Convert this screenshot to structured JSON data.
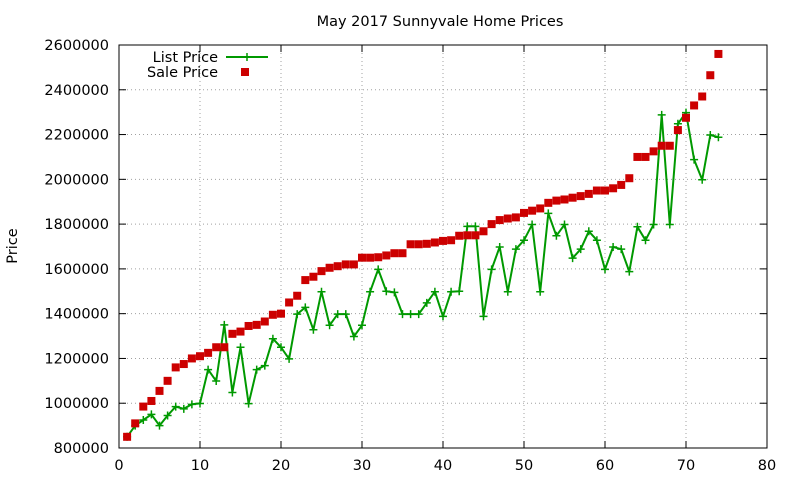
{
  "chart_data": {
    "type": "line",
    "title": "May 2017 Sunnyvale Home Prices",
    "xlabel": "",
    "ylabel": "Price",
    "xlim": [
      0,
      80
    ],
    "ylim": [
      800000,
      2600000
    ],
    "xticks": [
      0,
      10,
      20,
      30,
      40,
      50,
      60,
      70,
      80
    ],
    "yticks": [
      800000,
      1000000,
      1200000,
      1400000,
      1600000,
      1800000,
      2000000,
      2200000,
      2400000,
      2600000
    ],
    "grid": true,
    "legend_position": "top-left",
    "series": [
      {
        "name": "List Price",
        "style": "line-with-plus-markers",
        "color": "#009900",
        "points": [
          [
            1,
            850000
          ],
          [
            2,
            900000
          ],
          [
            3,
            925000
          ],
          [
            4,
            950000
          ],
          [
            5,
            900000
          ],
          [
            6,
            945000
          ],
          [
            7,
            985000
          ],
          [
            8,
            975000
          ],
          [
            9,
            995000
          ],
          [
            10,
            999000
          ],
          [
            11,
            1150000
          ],
          [
            12,
            1099000
          ],
          [
            13,
            1350000
          ],
          [
            14,
            1048000
          ],
          [
            15,
            1250000
          ],
          [
            16,
            998000
          ],
          [
            17,
            1150000
          ],
          [
            18,
            1168000
          ],
          [
            19,
            1288000
          ],
          [
            20,
            1250000
          ],
          [
            21,
            1198000
          ],
          [
            22,
            1398000
          ],
          [
            23,
            1428000
          ],
          [
            24,
            1328000
          ],
          [
            25,
            1498000
          ],
          [
            26,
            1348000
          ],
          [
            27,
            1398000
          ],
          [
            28,
            1398000
          ],
          [
            29,
            1298000
          ],
          [
            30,
            1348000
          ],
          [
            31,
            1498000
          ],
          [
            32,
            1598000
          ],
          [
            33,
            1500000
          ],
          [
            34,
            1495000
          ],
          [
            35,
            1398000
          ],
          [
            36,
            1398000
          ],
          [
            37,
            1398000
          ],
          [
            38,
            1448000
          ],
          [
            39,
            1498000
          ],
          [
            40,
            1388000
          ],
          [
            41,
            1498000
          ],
          [
            42,
            1500000
          ],
          [
            43,
            1790000
          ],
          [
            44,
            1790000
          ],
          [
            45,
            1388000
          ],
          [
            46,
            1598000
          ],
          [
            47,
            1698000
          ],
          [
            48,
            1498000
          ],
          [
            49,
            1688000
          ],
          [
            50,
            1728000
          ],
          [
            51,
            1798000
          ],
          [
            52,
            1498000
          ],
          [
            53,
            1848000
          ],
          [
            54,
            1748000
          ],
          [
            55,
            1798000
          ],
          [
            56,
            1648000
          ],
          [
            57,
            1688000
          ],
          [
            58,
            1768000
          ],
          [
            59,
            1728000
          ],
          [
            60,
            1598000
          ],
          [
            61,
            1698000
          ],
          [
            62,
            1688000
          ],
          [
            63,
            1588000
          ],
          [
            64,
            1788000
          ],
          [
            65,
            1728000
          ],
          [
            66,
            1798000
          ],
          [
            67,
            2288000
          ],
          [
            68,
            1798000
          ],
          [
            69,
            2248000
          ],
          [
            70,
            2298000
          ],
          [
            71,
            2088000
          ],
          [
            72,
            1998000
          ],
          [
            73,
            2198000
          ],
          [
            74,
            2188000
          ]
        ]
      },
      {
        "name": "Sale Price",
        "style": "square-markers",
        "color": "#cc0000",
        "points": [
          [
            1,
            850000
          ],
          [
            2,
            910000
          ],
          [
            3,
            985000
          ],
          [
            4,
            1010000
          ],
          [
            5,
            1055000
          ],
          [
            6,
            1100000
          ],
          [
            7,
            1160000
          ],
          [
            8,
            1175000
          ],
          [
            9,
            1200000
          ],
          [
            10,
            1210000
          ],
          [
            11,
            1225000
          ],
          [
            12,
            1250000
          ],
          [
            13,
            1250000
          ],
          [
            14,
            1310000
          ],
          [
            15,
            1320000
          ],
          [
            16,
            1345000
          ],
          [
            17,
            1350000
          ],
          [
            18,
            1365000
          ],
          [
            19,
            1395000
          ],
          [
            20,
            1400000
          ],
          [
            21,
            1450000
          ],
          [
            22,
            1480000
          ],
          [
            23,
            1550000
          ],
          [
            24,
            1565000
          ],
          [
            25,
            1590000
          ],
          [
            26,
            1605000
          ],
          [
            27,
            1612000
          ],
          [
            28,
            1620000
          ],
          [
            29,
            1620000
          ],
          [
            30,
            1650000
          ],
          [
            31,
            1650000
          ],
          [
            32,
            1652000
          ],
          [
            33,
            1660000
          ],
          [
            34,
            1670000
          ],
          [
            35,
            1670000
          ],
          [
            36,
            1710000
          ],
          [
            37,
            1710000
          ],
          [
            38,
            1712000
          ],
          [
            39,
            1718000
          ],
          [
            40,
            1725000
          ],
          [
            41,
            1728000
          ],
          [
            42,
            1748000
          ],
          [
            43,
            1750000
          ],
          [
            44,
            1750000
          ],
          [
            45,
            1768000
          ],
          [
            46,
            1800000
          ],
          [
            47,
            1818000
          ],
          [
            48,
            1825000
          ],
          [
            49,
            1830000
          ],
          [
            50,
            1850000
          ],
          [
            51,
            1860000
          ],
          [
            52,
            1870000
          ],
          [
            53,
            1895000
          ],
          [
            54,
            1905000
          ],
          [
            55,
            1910000
          ],
          [
            56,
            1918000
          ],
          [
            57,
            1925000
          ],
          [
            58,
            1935000
          ],
          [
            59,
            1950000
          ],
          [
            60,
            1950000
          ],
          [
            61,
            1960000
          ],
          [
            62,
            1975000
          ],
          [
            63,
            2005000
          ],
          [
            64,
            2100000
          ],
          [
            65,
            2100000
          ],
          [
            66,
            2125000
          ],
          [
            67,
            2150000
          ],
          [
            68,
            2150000
          ],
          [
            69,
            2220000
          ],
          [
            70,
            2275000
          ],
          [
            71,
            2330000
          ],
          [
            72,
            2370000
          ],
          [
            73,
            2465000
          ],
          [
            74,
            2560000
          ]
        ]
      }
    ]
  }
}
